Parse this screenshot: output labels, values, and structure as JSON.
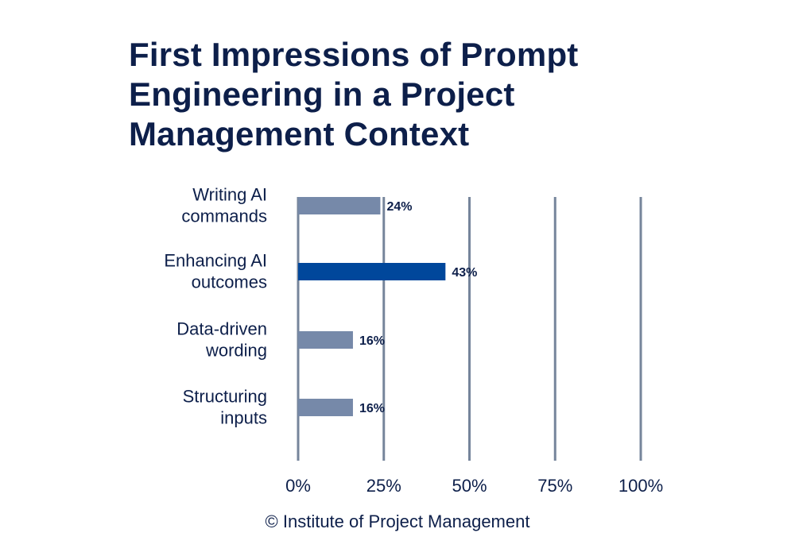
{
  "chart_data": {
    "type": "bar",
    "orientation": "horizontal",
    "title": "First Impressions of Prompt Engineering in a Project Management Context",
    "categories": [
      [
        "Writing AI",
        "commands"
      ],
      [
        "Enhancing AI",
        "outcomes"
      ],
      [
        "Data-driven",
        "wording"
      ],
      [
        "Structuring",
        "inputs"
      ]
    ],
    "values": [
      24,
      43,
      16,
      16
    ],
    "value_labels": [
      "24%",
      "43%",
      "16%",
      "16%"
    ],
    "highlight_index": 1,
    "xlim": [
      0,
      100
    ],
    "xticks": [
      0,
      25,
      50,
      75,
      100
    ],
    "xtick_labels": [
      "0%",
      "25%",
      "50%",
      "75%",
      "100%"
    ],
    "grid": true,
    "colors": {
      "bar": "#7689a9",
      "highlight": "#00479b",
      "grid": "#76859b",
      "text": "#0d1f4a"
    }
  },
  "footer": "© Institute of Project Management"
}
